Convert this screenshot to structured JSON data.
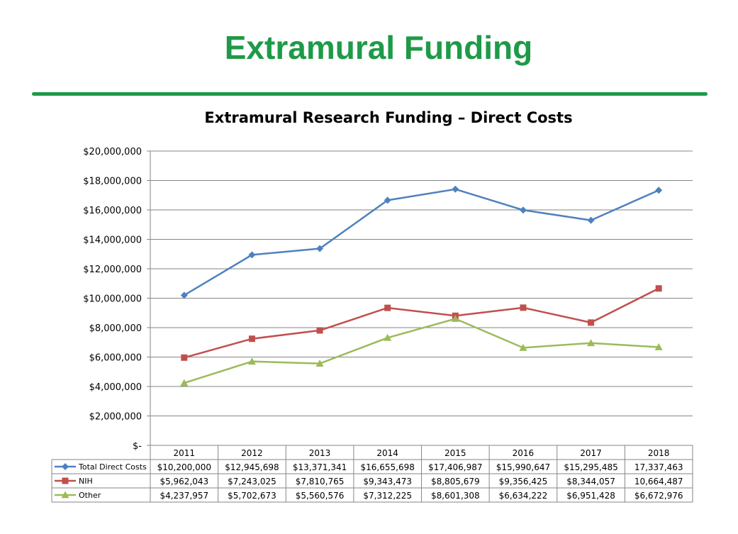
{
  "slide": {
    "title": "Extramural Funding"
  },
  "colors": {
    "title_green": "#1e9a48",
    "series": [
      "#4f81bd",
      "#c0504d",
      "#9bbb59"
    ],
    "grid": "#868686"
  },
  "chart_data": {
    "type": "line",
    "title": "Extramural Research Funding – Direct Costs",
    "xlabel": "",
    "ylabel": "",
    "categories": [
      "2011",
      "2012",
      "2013",
      "2014",
      "2015",
      "2016",
      "2017",
      "2018"
    ],
    "ylim": [
      0,
      20000000
    ],
    "ytick_values": [
      0,
      2000000,
      4000000,
      6000000,
      8000000,
      10000000,
      12000000,
      14000000,
      16000000,
      18000000,
      20000000
    ],
    "ytick_labels": [
      "$-",
      "$2,000,000",
      "$4,000,000",
      "$6,000,000",
      "$8,000,000",
      "$10,000,000",
      "$12,000,000",
      "$14,000,000",
      "$16,000,000",
      "$18,000,000",
      "$20,000,000"
    ],
    "grid": true,
    "legend": "data-table",
    "series": [
      {
        "name": "Total Direct Costs",
        "marker": "diamond",
        "values": [
          10200000,
          12945698,
          13371341,
          16655698,
          17406987,
          15990647,
          15295485,
          17337463
        ],
        "labels": [
          "$10,200,000",
          "$12,945,698",
          "$13,371,341",
          "$16,655,698",
          "$17,406,987",
          "$15,990,647",
          "$15,295,485",
          "17,337,463"
        ]
      },
      {
        "name": "NIH",
        "marker": "square",
        "values": [
          5962043,
          7243025,
          7810765,
          9343473,
          8805679,
          9356425,
          8344057,
          10664487
        ],
        "labels": [
          "$5,962,043",
          "$7,243,025",
          "$7,810,765",
          "$9,343,473",
          "$8,805,679",
          "$9,356,425",
          "$8,344,057",
          "10,664,487"
        ]
      },
      {
        "name": "Other",
        "marker": "triangle",
        "values": [
          4237957,
          5702673,
          5560576,
          7312225,
          8601308,
          6634222,
          6951428,
          6672976
        ],
        "labels": [
          "$4,237,957",
          "$5,702,673",
          "$5,560,576",
          "$7,312,225",
          "$8,601,308",
          "$6,634,222",
          "$6,951,428",
          "$6,672,976"
        ]
      }
    ]
  }
}
